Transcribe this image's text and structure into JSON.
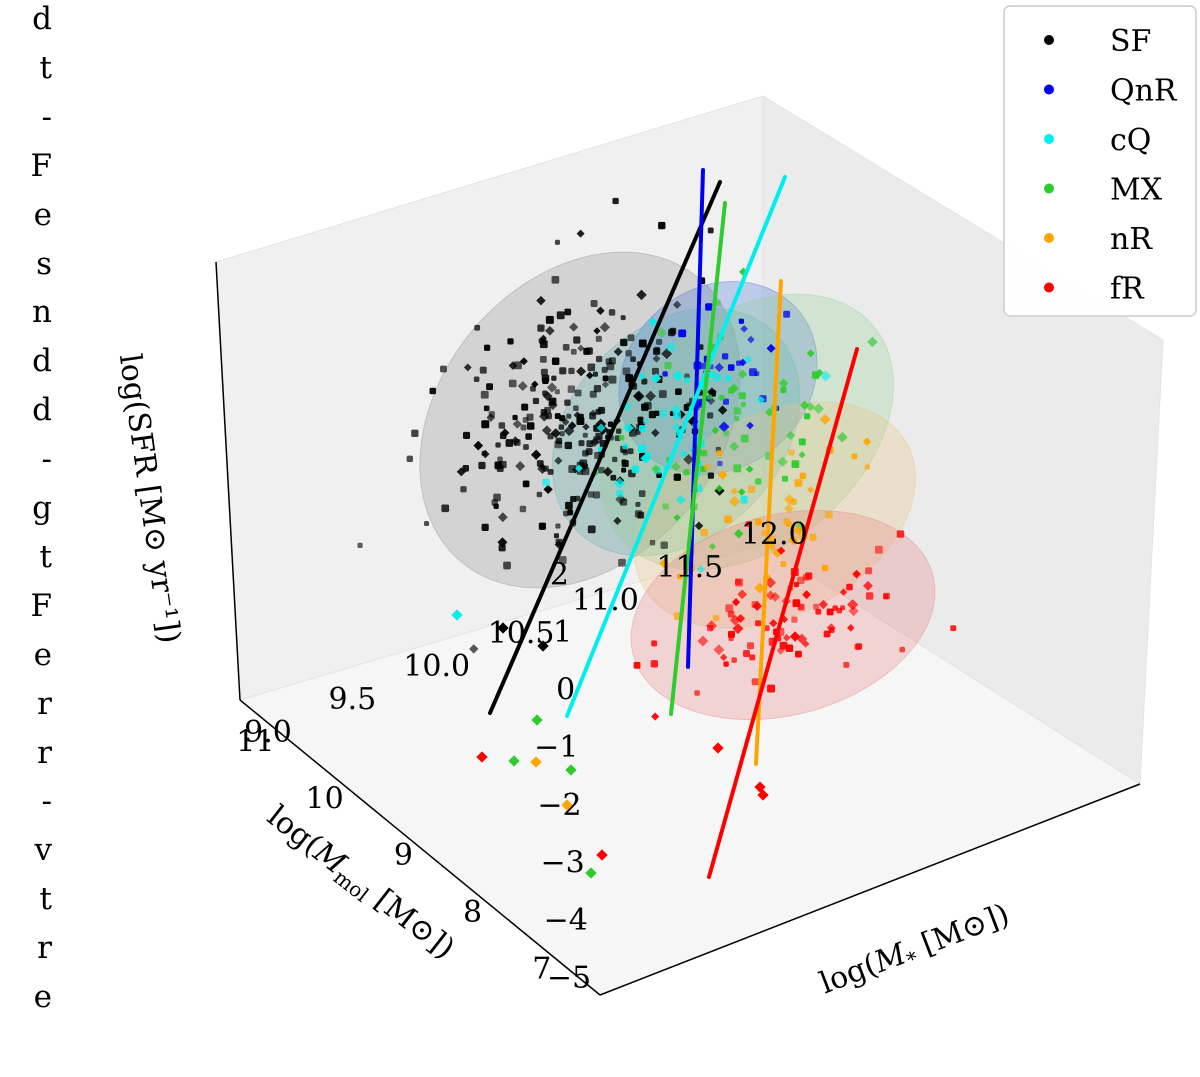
{
  "margin_fragments": [
    "d",
    "t",
    "-",
    "F",
    "e",
    "s",
    "n",
    "d",
    "d",
    "-",
    "g",
    "t",
    "F",
    "e",
    "r",
    "r",
    "-",
    "v",
    "t",
    "r",
    "e"
  ],
  "chart_data": {
    "type": "scatter3d",
    "title": "",
    "xlabel": "log(M* [M⊙])",
    "ylabel": "log(Mmol [M⊙])",
    "zlabel": "log(SFR [M⊙ yr−1])",
    "xlabel_parts": {
      "pre": "log(",
      "sym": "M",
      "sub": "*",
      "post": " [M⊙])"
    },
    "ylabel_parts": {
      "pre": "log(",
      "sym": "M",
      "sub": "mol",
      "post": " [M⊙])"
    },
    "zlabel_text": "log(SFR [M⊙ yr⁻¹])",
    "xlim": [
      9.0,
      12.2
    ],
    "ylim": [
      6.5,
      11.7
    ],
    "zlim": [
      -5.3,
      2.3
    ],
    "x_ticks": [
      "9.0",
      "9.5",
      "10.0",
      "10.5",
      "11.0",
      "11.5",
      "12.0"
    ],
    "y_ticks": [
      "7",
      "8",
      "9",
      "10",
      "11"
    ],
    "z_ticks": [
      "2",
      "1",
      "0",
      "−1",
      "−2",
      "−3",
      "−4",
      "−5"
    ],
    "legend": {
      "position": "top-right",
      "entries": [
        {
          "label": "SF",
          "color": "#000000"
        },
        {
          "label": "QnR",
          "color": "#0000ee"
        },
        {
          "label": "cQ",
          "color": "#00eeee"
        },
        {
          "label": "MX",
          "color": "#2ecc2e"
        },
        {
          "label": "nR",
          "color": "#ffa500"
        },
        {
          "label": "fR",
          "color": "#ff0000"
        }
      ]
    },
    "series": [
      {
        "name": "SF",
        "color": "#000000",
        "n_points": 300,
        "ellipsoid": {
          "center": [
            10.3,
            9.5,
            -0.6
          ],
          "fill": "#888888"
        },
        "fit_line": [
          [
            9.2,
            7.0,
            -5.2
          ],
          [
            10.8,
            11.0,
            2.3
          ]
        ]
      },
      {
        "name": "QnR",
        "color": "#0000ee",
        "n_points": 30,
        "ellipsoid": {
          "center": [
            10.7,
            10.0,
            -0.9
          ],
          "fill": "#3a6bd6"
        },
        "fit_line": [
          [
            10.2,
            8.7,
            -4.3
          ],
          [
            10.9,
            10.5,
            2.3
          ]
        ]
      },
      {
        "name": "cQ",
        "color": "#00eeee",
        "n_points": 50,
        "ellipsoid": {
          "center": [
            10.6,
            9.6,
            -1.2
          ],
          "fill": "#5fb5b5"
        },
        "fit_line": [
          [
            9.5,
            7.0,
            -4.9
          ],
          [
            11.1,
            11.0,
            2.3
          ]
        ]
      },
      {
        "name": "MX",
        "color": "#2ecc2e",
        "n_points": 60,
        "ellipsoid": {
          "center": [
            10.9,
            9.8,
            -1.3
          ],
          "fill": "#8fcf8f"
        },
        "fit_line": [
          [
            10.1,
            8.5,
            -4.6
          ],
          [
            10.7,
            10.1,
            2.3
          ]
        ]
      },
      {
        "name": "nR",
        "color": "#ffa500",
        "n_points": 45,
        "ellipsoid": {
          "center": [
            11.3,
            9.6,
            -2.0
          ],
          "fill": "#e8c27a"
        },
        "fit_line": [
          [
            10.6,
            8.0,
            -4.4
          ],
          [
            11.0,
            9.1,
            2.3
          ]
        ]
      },
      {
        "name": "fR",
        "color": "#ff0000",
        "n_points": 90,
        "ellipsoid": {
          "center": [
            11.3,
            9.0,
            -3.2
          ],
          "fill": "#e77a7a"
        },
        "fit_line": [
          [
            10.2,
            7.0,
            -5.3
          ],
          [
            11.5,
            10.0,
            1.6
          ]
        ]
      }
    ]
  }
}
